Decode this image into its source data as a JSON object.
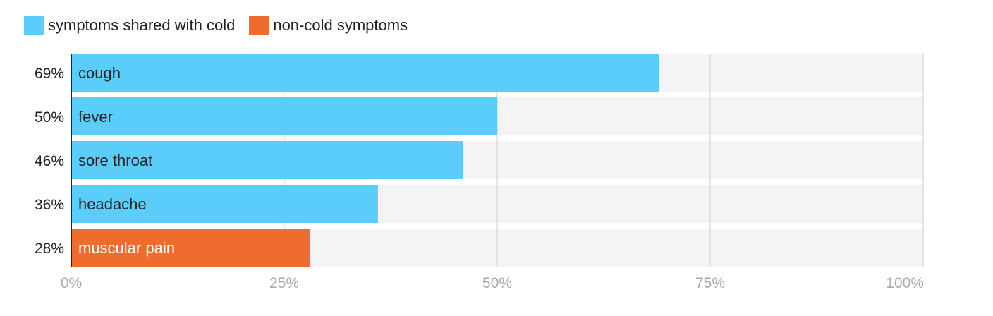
{
  "legend": [
    {
      "label": "symptoms shared with cold",
      "color": "#5BCDFA"
    },
    {
      "label": "non-cold symptoms",
      "color": "#EF6C2F"
    }
  ],
  "chart_data": {
    "type": "bar",
    "orientation": "horizontal",
    "categories": [
      "cough",
      "fever",
      "sore throat",
      "headache",
      "muscular pain"
    ],
    "values": [
      69,
      50,
      46,
      36,
      28
    ],
    "value_labels": [
      "69%",
      "50%",
      "46%",
      "36%",
      "28%"
    ],
    "groups": [
      "symptoms shared with cold",
      "symptoms shared with cold",
      "symptoms shared with cold",
      "symptoms shared with cold",
      "non-cold symptoms"
    ],
    "xlim": [
      0,
      100
    ],
    "x_ticks": [
      0,
      25,
      50,
      75,
      100
    ],
    "x_tick_labels": [
      "0%",
      "25%",
      "50%",
      "75%",
      "100%"
    ],
    "grid": true,
    "legend_position": "top-left",
    "title": "",
    "xlabel": "",
    "ylabel": "",
    "colors": {
      "shared": "#5BCDFA",
      "non_cold": "#EF6C2F",
      "track": "#F4F4F4",
      "grid": "#DDDDDD",
      "tick_label": "#AAAAAA"
    }
  }
}
